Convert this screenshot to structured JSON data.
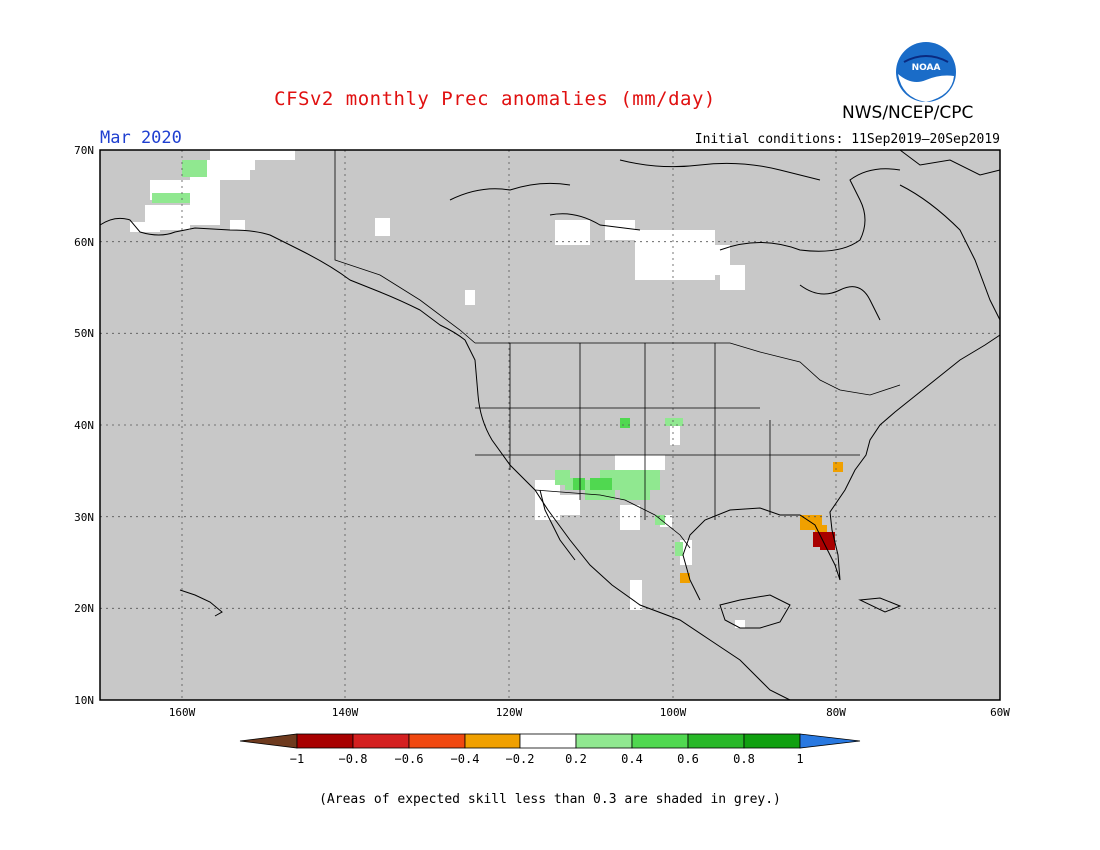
{
  "header": {
    "title": "CFSv2 monthly Prec anomalies (mm/day)",
    "agency": "NWS/NCEP/CPC",
    "valid_month": "Mar 2020",
    "initial_conditions": "Initial conditions: 11Sep2019–20Sep2019",
    "logo_text": "NOAA"
  },
  "map": {
    "lat_labels": [
      "70N",
      "60N",
      "50N",
      "40N",
      "30N",
      "20N",
      "10N"
    ],
    "lon_labels": [
      "160W",
      "140W",
      "120W",
      "100W",
      "80W",
      "60W"
    ],
    "mask_color": "#c8c8c8"
  },
  "colorbar": {
    "ticks": [
      "−1",
      "−0.8",
      "−0.6",
      "−0.4",
      "−0.2",
      "0.2",
      "0.4",
      "0.6",
      "0.8",
      "1"
    ],
    "colors": [
      "#6e3a1e",
      "#a80000",
      "#d42020",
      "#f04810",
      "#f0a000",
      "#ffffff",
      "#90e890",
      "#50d850",
      "#28b828",
      "#10a010",
      "#2878e0"
    ]
  },
  "footnote": "(Areas of expected skill less than 0.3 are shaded in grey.)"
}
